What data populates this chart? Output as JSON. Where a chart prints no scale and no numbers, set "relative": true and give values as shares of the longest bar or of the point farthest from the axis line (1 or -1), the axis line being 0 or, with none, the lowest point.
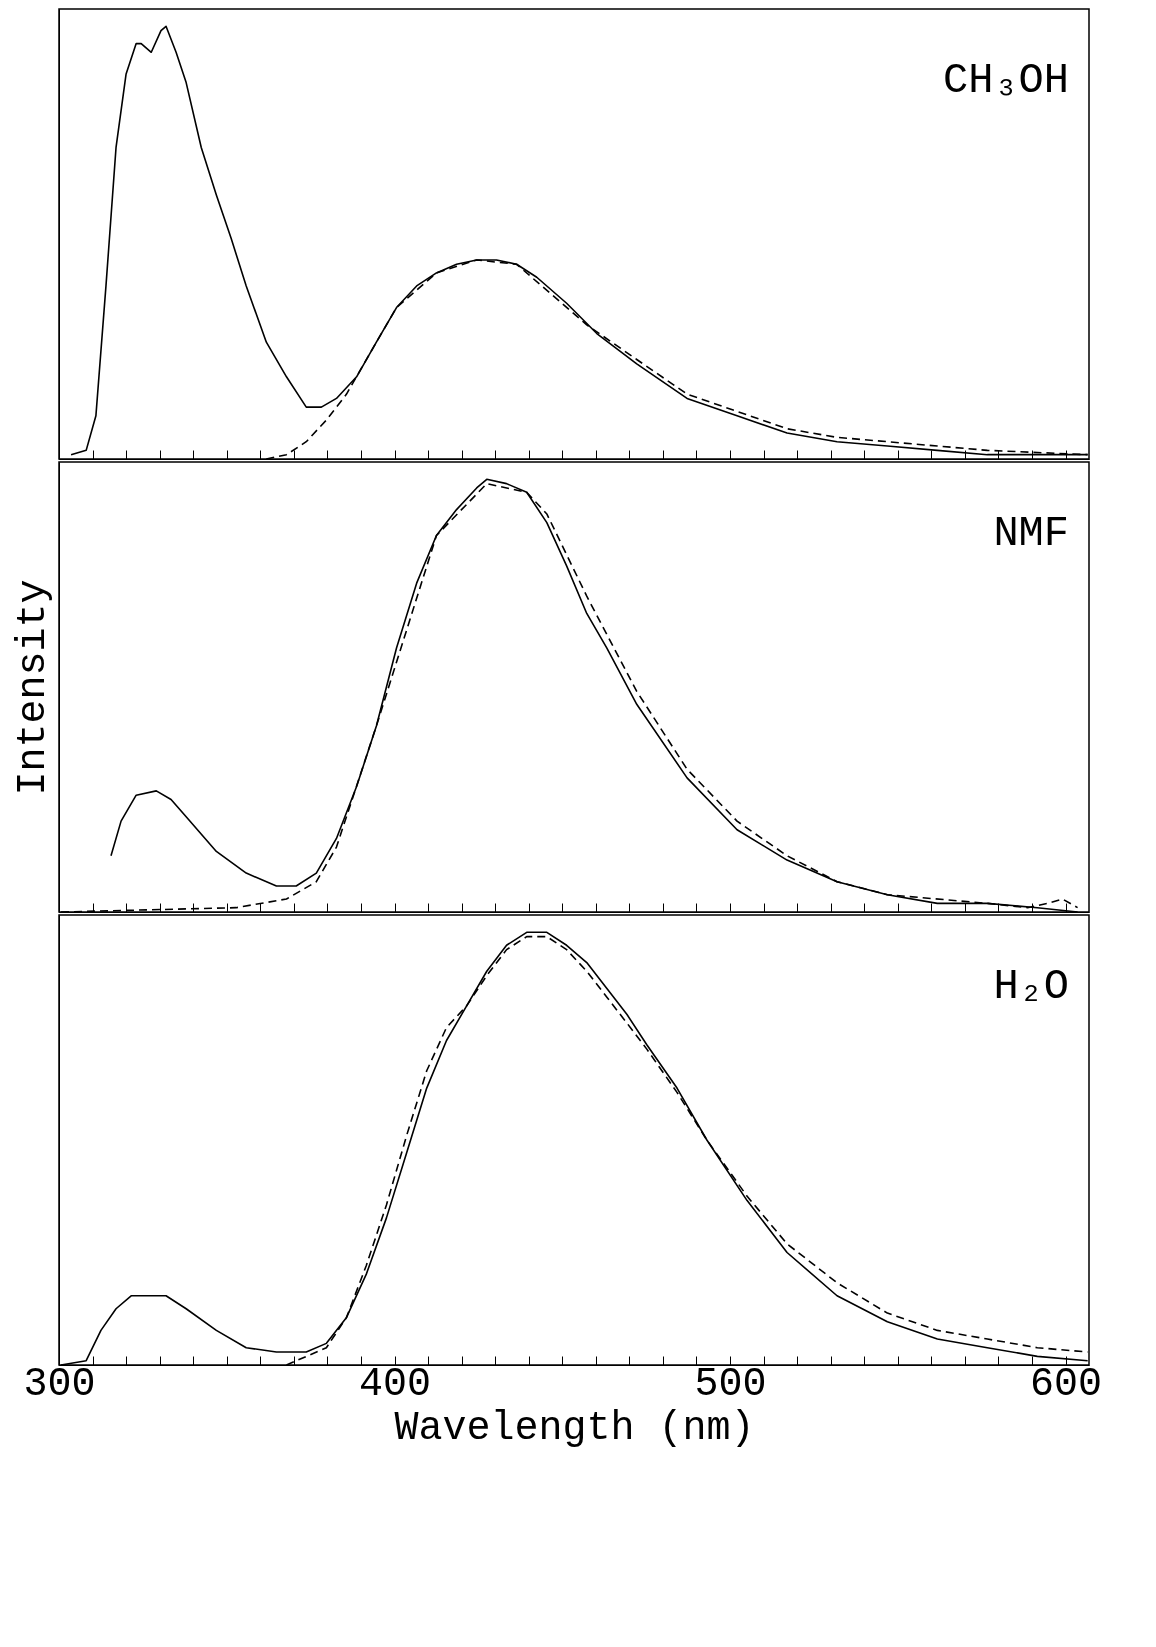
{
  "chart_data": [
    {
      "type": "line",
      "relative": true,
      "xlim": [
        300,
        607
      ],
      "tick_labels": false,
      "annotations": [
        "CH₃OH"
      ],
      "xticks": [
        300,
        {
          "value": 310,
          "label": null
        },
        {
          "value": 320,
          "label": null
        },
        {
          "value": 330,
          "label": null
        },
        {
          "value": 340,
          "label": null
        },
        {
          "value": 350,
          "label": null
        },
        {
          "value": 360,
          "label": null
        },
        {
          "value": 370,
          "label": null
        },
        {
          "value": 380,
          "label": null
        },
        {
          "value": 390,
          "label": null
        },
        400,
        {
          "value": 410,
          "label": null
        },
        {
          "value": 420,
          "label": null
        },
        {
          "value": 430,
          "label": null
        },
        {
          "value": 440,
          "label": null
        },
        {
          "value": 450,
          "label": null
        },
        {
          "value": 460,
          "label": null
        },
        {
          "value": 470,
          "label": null
        },
        {
          "value": 480,
          "label": null
        },
        {
          "value": 490,
          "label": null
        },
        500,
        {
          "value": 510,
          "label": null
        },
        {
          "value": 520,
          "label": null
        },
        {
          "value": 530,
          "label": null
        },
        {
          "value": 540,
          "label": null
        },
        {
          "value": 550,
          "label": null
        },
        {
          "value": 560,
          "label": null
        },
        {
          "value": 570,
          "label": null
        },
        {
          "value": 580,
          "label": null
        },
        {
          "value": 590,
          "label": null
        },
        600
      ],
      "series": [
        {
          "color": "#000000",
          "line_style": "solid",
          "x": [
            303.6,
            308.1,
            311.0,
            314.0,
            317.0,
            320.0,
            323.0,
            324.5,
            327.5,
            330.4,
            331.9,
            334.9,
            337.9,
            342.4,
            346.9,
            351.3,
            355.8,
            361.8,
            367.8,
            373.7,
            378.2,
            382.7,
            388.7,
            394.6,
            400.6,
            406.6,
            412.5,
            418.5,
            424.5,
            430.4,
            436.4,
            442.4,
            451.3,
            460.3,
            472.2,
            487.2,
            502.1,
            517.0,
            531.9,
            546.9,
            561.8,
            576.7,
            591.6,
            606.6
          ],
          "values": [
            0.01,
            0.02,
            0.1,
            0.4,
            0.72,
            0.89,
            0.96,
            0.96,
            0.94,
            0.99,
            1,
            0.94,
            0.87,
            0.72,
            0.61,
            0.51,
            0.4,
            0.27,
            0.19,
            0.12,
            0.12,
            0.14,
            0.19,
            0.27,
            0.35,
            0.4,
            0.43,
            0.45,
            0.46,
            0.46,
            0.45,
            0.42,
            0.36,
            0.29,
            0.22,
            0.14,
            0.1,
            0.06,
            0.04,
            0.03,
            0.02,
            0.01,
            0.01,
            0.01
          ]
        },
        {
          "color": "#000000",
          "line_style": "dashed",
          "x": [
            361.8,
            367.8,
            373.7,
            379.7,
            385.7,
            394.6,
            400.6,
            412.5,
            424.5,
            436.4,
            457.3,
            472.2,
            487.2,
            502.1,
            517.0,
            531.9,
            546.9,
            561.8,
            576.7,
            606.6
          ],
          "values": [
            0,
            0.01,
            0.04,
            0.09,
            0.15,
            0.27,
            0.35,
            0.43,
            0.46,
            0.45,
            0.31,
            0.23,
            0.15,
            0.11,
            0.07,
            0.05,
            0.04,
            0.03,
            0.02,
            0.01
          ]
        }
      ]
    },
    {
      "type": "line",
      "relative": true,
      "xlim": [
        300,
        607
      ],
      "tick_labels": false,
      "ylabel": "Intensity",
      "annotations": [
        "NMF"
      ],
      "xticks": [
        300,
        {
          "value": 310,
          "label": null
        },
        {
          "value": 320,
          "label": null
        },
        {
          "value": 330,
          "label": null
        },
        {
          "value": 340,
          "label": null
        },
        {
          "value": 350,
          "label": null
        },
        {
          "value": 360,
          "label": null
        },
        {
          "value": 370,
          "label": null
        },
        {
          "value": 380,
          "label": null
        },
        {
          "value": 390,
          "label": null
        },
        400,
        {
          "value": 410,
          "label": null
        },
        {
          "value": 420,
          "label": null
        },
        {
          "value": 430,
          "label": null
        },
        {
          "value": 440,
          "label": null
        },
        {
          "value": 450,
          "label": null
        },
        {
          "value": 460,
          "label": null
        },
        {
          "value": 470,
          "label": null
        },
        {
          "value": 480,
          "label": null
        },
        {
          "value": 490,
          "label": null
        },
        500,
        {
          "value": 510,
          "label": null
        },
        {
          "value": 520,
          "label": null
        },
        {
          "value": 530,
          "label": null
        },
        {
          "value": 540,
          "label": null
        },
        {
          "value": 550,
          "label": null
        },
        {
          "value": 560,
          "label": null
        },
        {
          "value": 570,
          "label": null
        },
        {
          "value": 580,
          "label": null
        },
        {
          "value": 590,
          "label": null
        },
        600
      ],
      "series": [
        {
          "color": "#000000",
          "line_style": "solid",
          "x": [
            315.5,
            318.5,
            323.0,
            329.0,
            333.4,
            337.9,
            346.9,
            355.8,
            364.8,
            370.7,
            376.7,
            382.7,
            388.7,
            394.6,
            400.6,
            406.6,
            412.5,
            418.5,
            424.5,
            427.5,
            433.4,
            439.4,
            445.4,
            451.3,
            457.3,
            463.3,
            472.2,
            487.2,
            502.1,
            517.0,
            531.9,
            546.9,
            561.8,
            576.7,
            591.6,
            603.6
          ],
          "values": [
            0.13,
            0.21,
            0.27,
            0.28,
            0.26,
            0.22,
            0.14,
            0.09,
            0.06,
            0.06,
            0.09,
            0.17,
            0.29,
            0.43,
            0.61,
            0.76,
            0.87,
            0.93,
            0.98,
            1,
            0.99,
            0.97,
            0.9,
            0.8,
            0.69,
            0.61,
            0.48,
            0.31,
            0.19,
            0.12,
            0.07,
            0.04,
            0.02,
            0.02,
            0.01,
            0.0
          ]
        },
        {
          "color": "#000000",
          "line_style": "dashed",
          "x": [
            300.6,
            352.8,
            367.8,
            376.7,
            382.7,
            394.6,
            412.5,
            427.5,
            439.4,
            445.4,
            457.3,
            472.2,
            487.2,
            502.1,
            517.0,
            531.9,
            546.9,
            576.7,
            588.7,
            594.6,
            599.1,
            603.6
          ],
          "values": [
            0.0,
            0.01,
            0.03,
            0.07,
            0.15,
            0.43,
            0.87,
            0.99,
            0.97,
            0.92,
            0.73,
            0.51,
            0.33,
            0.21,
            0.13,
            0.07,
            0.04,
            0.02,
            0.01,
            0.02,
            0.03,
            0.01
          ]
        }
      ]
    },
    {
      "type": "line",
      "relative": true,
      "xlim": [
        300,
        607
      ],
      "tick_labels": "x",
      "xlabel": "Wavelength (nm)",
      "annotations": [
        "H₂O"
      ],
      "xticks": [
        300,
        {
          "value": 310,
          "label": null
        },
        {
          "value": 320,
          "label": null
        },
        {
          "value": 330,
          "label": null
        },
        {
          "value": 340,
          "label": null
        },
        {
          "value": 350,
          "label": null
        },
        {
          "value": 360,
          "label": null
        },
        {
          "value": 370,
          "label": null
        },
        {
          "value": 380,
          "label": null
        },
        {
          "value": 390,
          "label": null
        },
        400,
        {
          "value": 410,
          "label": null
        },
        {
          "value": 420,
          "label": null
        },
        {
          "value": 430,
          "label": null
        },
        {
          "value": 440,
          "label": null
        },
        {
          "value": 450,
          "label": null
        },
        {
          "value": 460,
          "label": null
        },
        {
          "value": 470,
          "label": null
        },
        {
          "value": 480,
          "label": null
        },
        {
          "value": 490,
          "label": null
        },
        500,
        {
          "value": 510,
          "label": null
        },
        {
          "value": 520,
          "label": null
        },
        {
          "value": 530,
          "label": null
        },
        {
          "value": 540,
          "label": null
        },
        {
          "value": 550,
          "label": null
        },
        {
          "value": 560,
          "label": null
        },
        {
          "value": 570,
          "label": null
        },
        {
          "value": 580,
          "label": null
        },
        {
          "value": 590,
          "label": null
        },
        600
      ],
      "series": [
        {
          "color": "#000000",
          "line_style": "solid",
          "x": [
            300.6,
            308.1,
            312.5,
            317.0,
            321.5,
            326.0,
            331.9,
            337.9,
            346.9,
            355.8,
            364.8,
            373.7,
            379.7,
            385.7,
            391.6,
            397.6,
            403.6,
            409.6,
            415.5,
            421.5,
            427.5,
            433.4,
            439.4,
            445.4,
            451.3,
            457.3,
            463.3,
            469.3,
            475.2,
            484.2,
            493.1,
            505.1,
            517.0,
            531.9,
            546.9,
            561.8,
            576.7,
            591.6,
            606.6
          ],
          "values": [
            0.0,
            0.01,
            0.08,
            0.13,
            0.16,
            0.16,
            0.16,
            0.13,
            0.08,
            0.04,
            0.03,
            0.03,
            0.05,
            0.11,
            0.21,
            0.34,
            0.49,
            0.64,
            0.75,
            0.83,
            0.91,
            0.97,
            1,
            1,
            0.97,
            0.93,
            0.87,
            0.81,
            0.74,
            0.64,
            0.52,
            0.38,
            0.26,
            0.16,
            0.1,
            0.06,
            0.04,
            0.02,
            0.01
          ]
        },
        {
          "color": "#000000",
          "line_style": "dashed",
          "x": [
            367.8,
            379.7,
            385.7,
            391.6,
            397.6,
            403.6,
            409.6,
            415.5,
            421.5,
            427.5,
            433.4,
            439.4,
            445.4,
            451.3,
            457.3,
            463.3,
            469.3,
            475.2,
            484.2,
            493.1,
            505.1,
            517.0,
            531.9,
            546.9,
            561.8,
            576.7,
            591.6,
            606.6
          ],
          "values": [
            0,
            0.04,
            0.11,
            0.23,
            0.37,
            0.53,
            0.68,
            0.78,
            0.83,
            0.9,
            0.96,
            0.99,
            0.99,
            0.96,
            0.91,
            0.85,
            0.79,
            0.73,
            0.63,
            0.52,
            0.39,
            0.28,
            0.19,
            0.12,
            0.08,
            0.06,
            0.04,
            0.03
          ]
        }
      ]
    }
  ]
}
